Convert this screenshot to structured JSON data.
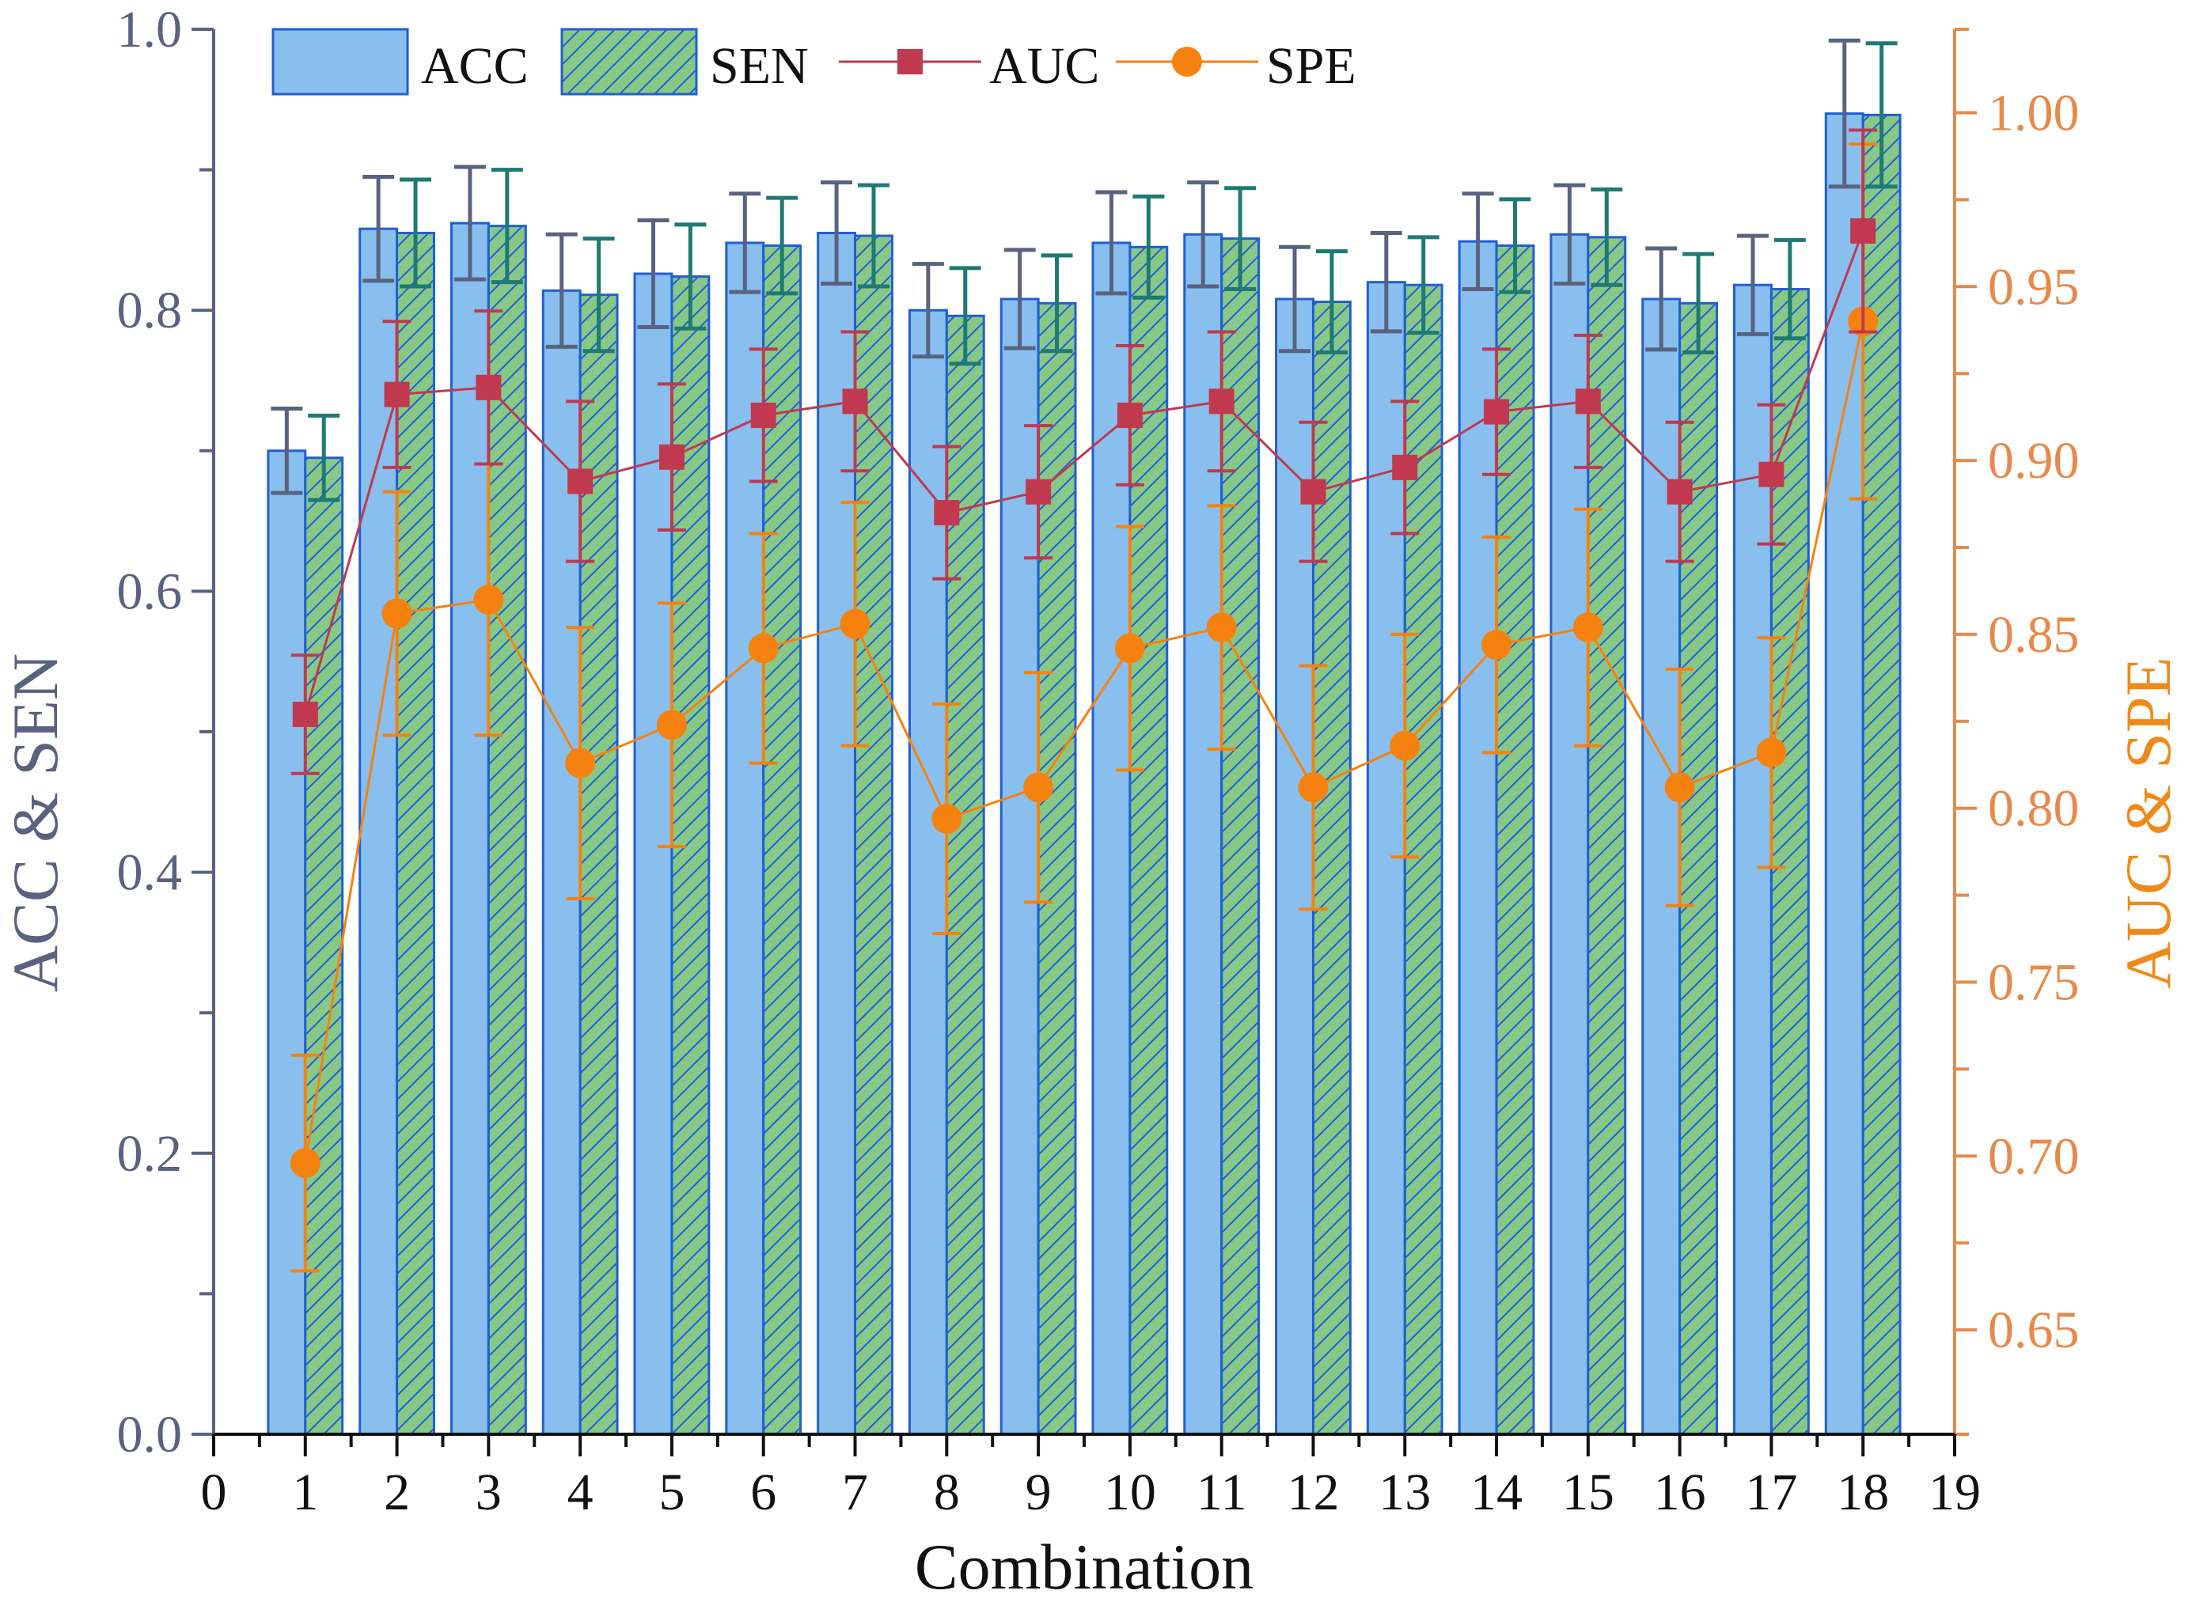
{
  "chart_data": {
    "type": "bar",
    "title": "",
    "xlabel": "Combination",
    "ylabel": "ACC & SEN",
    "y2label": "AUC & SPE",
    "xlim": [
      0,
      19
    ],
    "ylim": [
      0,
      1.0
    ],
    "y2lim": [
      0.62,
      1.024
    ],
    "xticks": [
      "0",
      "1",
      "2",
      "3",
      "4",
      "5",
      "6",
      "7",
      "8",
      "9",
      "10",
      "11",
      "12",
      "13",
      "14",
      "15",
      "16",
      "17",
      "18",
      "19"
    ],
    "yticks": [
      "0.0",
      "0.2",
      "0.4",
      "0.6",
      "0.8",
      "1.0"
    ],
    "y2ticks": [
      "0.65",
      "0.70",
      "0.75",
      "0.80",
      "0.85",
      "0.90",
      "0.95",
      "1.00"
    ],
    "categories": [
      1,
      2,
      3,
      4,
      5,
      6,
      7,
      8,
      9,
      10,
      11,
      12,
      13,
      14,
      15,
      16,
      17,
      18
    ],
    "series": [
      {
        "name": "ACC",
        "kind": "bar",
        "axis": "left",
        "color": "#88bfee",
        "edge": "#1f5fd4",
        "values": [
          0.7,
          0.858,
          0.862,
          0.814,
          0.826,
          0.848,
          0.855,
          0.8,
          0.808,
          0.848,
          0.854,
          0.808,
          0.82,
          0.849,
          0.854,
          0.808,
          0.818,
          0.94
        ],
        "errors": [
          0.03,
          0.037,
          0.04,
          0.04,
          0.038,
          0.035,
          0.036,
          0.033,
          0.035,
          0.036,
          0.037,
          0.037,
          0.035,
          0.034,
          0.035,
          0.036,
          0.035,
          0.052
        ]
      },
      {
        "name": "SEN",
        "kind": "bar",
        "axis": "left",
        "color": "#88c887",
        "edge": "#1f5fd4",
        "hatch": true,
        "values": [
          0.695,
          0.855,
          0.86,
          0.811,
          0.824,
          0.846,
          0.853,
          0.796,
          0.805,
          0.845,
          0.851,
          0.806,
          0.818,
          0.846,
          0.852,
          0.805,
          0.815,
          0.939
        ],
        "errors": [
          0.03,
          0.038,
          0.04,
          0.04,
          0.037,
          0.034,
          0.036,
          0.034,
          0.034,
          0.036,
          0.036,
          0.036,
          0.034,
          0.033,
          0.034,
          0.035,
          0.035,
          0.051
        ]
      },
      {
        "name": "AUC",
        "kind": "line",
        "axis": "right",
        "color": "#c0394f",
        "marker": "square",
        "values": [
          0.827,
          0.919,
          0.921,
          0.894,
          0.901,
          0.913,
          0.917,
          0.885,
          0.891,
          0.913,
          0.917,
          0.891,
          0.898,
          0.914,
          0.917,
          0.891,
          0.896,
          0.966
        ],
        "errors": [
          0.017,
          0.021,
          0.022,
          0.023,
          0.021,
          0.019,
          0.02,
          0.019,
          0.019,
          0.02,
          0.02,
          0.02,
          0.019,
          0.018,
          0.019,
          0.02,
          0.02,
          0.029
        ]
      },
      {
        "name": "SPE",
        "kind": "line",
        "axis": "right",
        "color": "#f5820f",
        "marker": "circle",
        "values": [
          0.698,
          0.856,
          0.86,
          0.813,
          0.824,
          0.846,
          0.853,
          0.797,
          0.806,
          0.846,
          0.852,
          0.806,
          0.818,
          0.847,
          0.852,
          0.806,
          0.816,
          0.94
        ],
        "errors": [
          0.031,
          0.035,
          0.039,
          0.039,
          0.035,
          0.033,
          0.035,
          0.033,
          0.033,
          0.035,
          0.035,
          0.035,
          0.032,
          0.031,
          0.034,
          0.034,
          0.033,
          0.051
        ]
      }
    ],
    "legend": {
      "position": "top-left",
      "entries": [
        "ACC",
        "SEN",
        "AUC",
        "SPE"
      ]
    },
    "grid": false
  },
  "colors": {
    "left_axis": "#5a6280",
    "right_axis": "#e8894a",
    "acc_error": "#5a6280",
    "sen_error": "#1e7a72"
  }
}
